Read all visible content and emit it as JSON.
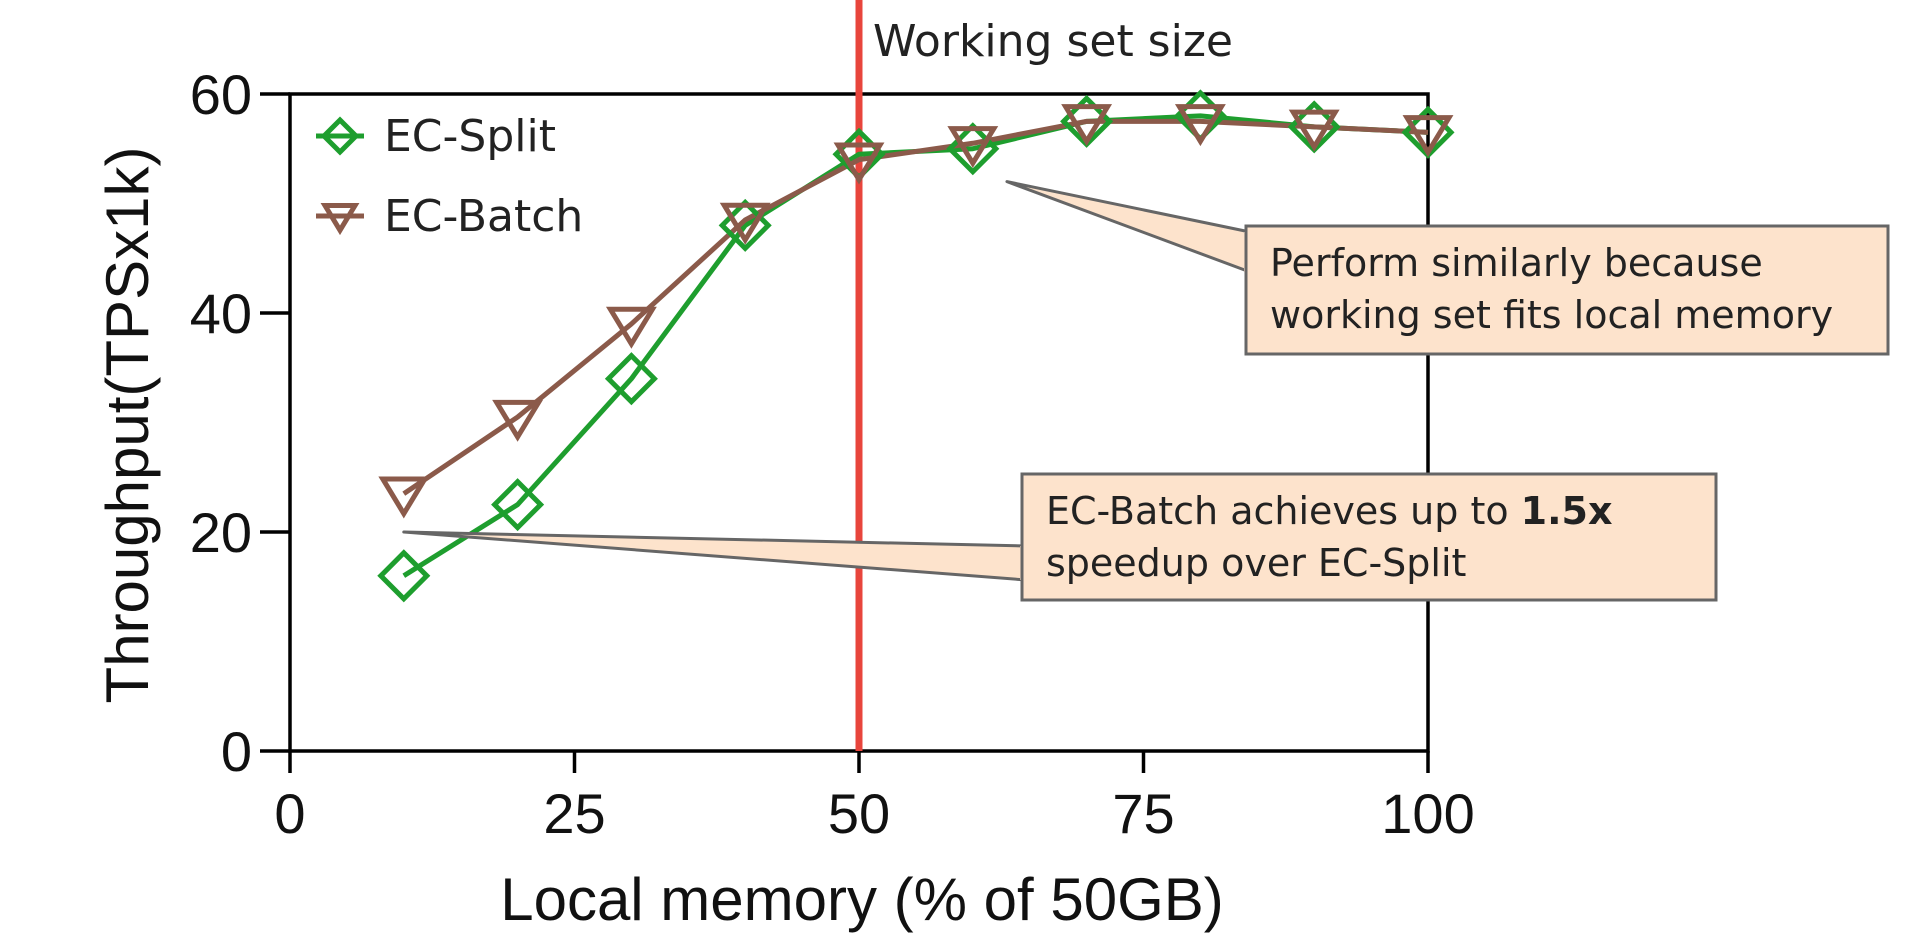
{
  "chart_data": {
    "type": "line",
    "xlabel": "Local memory (% of 50GB)",
    "ylabel": "Throughput(TPSx1k)",
    "xlim": [
      0,
      100
    ],
    "ylim": [
      0,
      60
    ],
    "xticks": [
      0,
      25,
      50,
      75,
      100
    ],
    "yticks": [
      0,
      20,
      40,
      60
    ],
    "x": [
      10,
      20,
      30,
      40,
      50,
      60,
      70,
      80,
      90,
      100
    ],
    "series": [
      {
        "name": "EC-Split",
        "marker": "diamond",
        "color": "#1e9e2e",
        "values": [
          16,
          22.5,
          34,
          48,
          54.5,
          55,
          57.5,
          58,
          57,
          56.5
        ]
      },
      {
        "name": "EC-Batch",
        "marker": "triangle-down",
        "color": "#8b5a4a",
        "values": [
          23.5,
          30.5,
          39,
          48.5,
          54,
          55.5,
          57.5,
          57.5,
          57,
          56.5
        ]
      }
    ],
    "grid": false,
    "legend_position": "top-left",
    "reference_line": {
      "x": 50,
      "label": "Working set size",
      "color": "#e8453c"
    },
    "annotations": [
      {
        "text_lines": [
          "Perform similarly because",
          "working set fits local memory"
        ],
        "bold": "",
        "points_to": {
          "x": 63,
          "y": 52
        }
      },
      {
        "text_lines": [
          "EC-Batch achieves up to ",
          "speedup over EC-Split"
        ],
        "bold": "1.5x",
        "points_to": {
          "x": 10,
          "y": 20
        }
      }
    ]
  }
}
